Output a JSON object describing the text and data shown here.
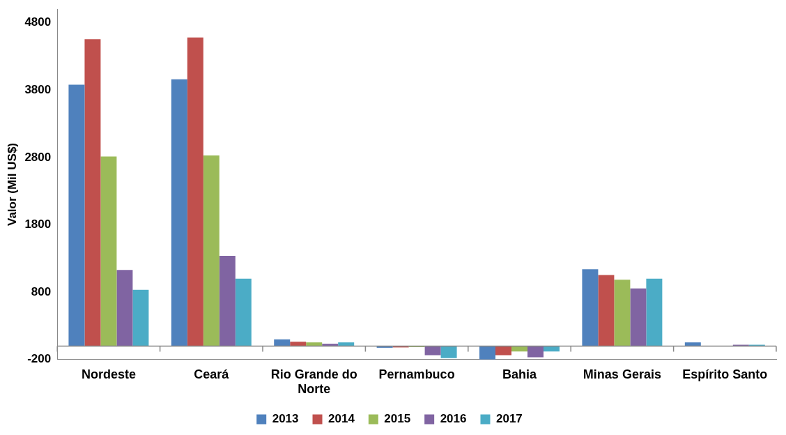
{
  "chart_data": {
    "type": "bar",
    "ylabel": "Valor (Mil US$)",
    "categories": [
      "Nordeste",
      "Ceará",
      "Rio Grande do Norte",
      "Pernambuco",
      "Bahia",
      "Minas Gerais",
      "Espírito Santo"
    ],
    "series": [
      {
        "name": "2013",
        "color": "#4f81bd",
        "values": [
          3880,
          3960,
          100,
          -25,
          -200,
          1140,
          55
        ]
      },
      {
        "name": "2014",
        "color": "#c0504d",
        "values": [
          4555,
          4580,
          65,
          -20,
          -135,
          1055,
          5
        ]
      },
      {
        "name": "2015",
        "color": "#9bbb59",
        "values": [
          2815,
          2830,
          55,
          -15,
          -80,
          985,
          3
        ]
      },
      {
        "name": "2016",
        "color": "#8064a2",
        "values": [
          1130,
          1340,
          35,
          -135,
          -165,
          855,
          20
        ]
      },
      {
        "name": "2017",
        "color": "#4bacc6",
        "values": [
          835,
          1000,
          55,
          -180,
          -80,
          1000,
          20
        ]
      }
    ],
    "ylim": [
      -200,
      5000
    ],
    "yticks": [
      -200,
      800,
      1800,
      2800,
      3800,
      4800
    ],
    "grid": false,
    "legend": "bottom"
  }
}
